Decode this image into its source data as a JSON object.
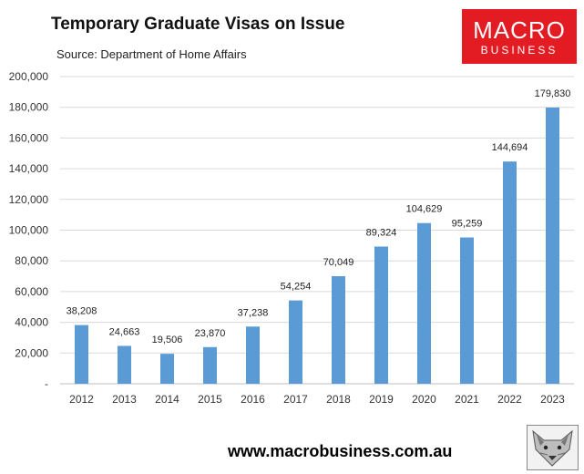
{
  "header": {
    "title": "Temporary Graduate Visas on Issue",
    "source": "Source: Department of Home Affairs"
  },
  "logo": {
    "line1": "MACRO",
    "line2": "BUSINESS",
    "bg_color": "#e31b23",
    "icon": "macrobusiness-logo"
  },
  "footer": {
    "url": "www.macrobusiness.com.au",
    "icon": "fox-mascot-icon"
  },
  "colors": {
    "bar": "#5b9bd5",
    "grid": "#d9d9d9"
  },
  "chart_data": {
    "type": "bar",
    "title": "Temporary Graduate Visas on Issue",
    "categories": [
      "2012",
      "2013",
      "2014",
      "2015",
      "2016",
      "2017",
      "2018",
      "2019",
      "2020",
      "2021",
      "2022",
      "2023"
    ],
    "values": [
      38208,
      24663,
      19506,
      23870,
      37238,
      54254,
      70049,
      89324,
      104629,
      95259,
      144694,
      179830
    ],
    "value_labels": [
      "38,208",
      "24,663",
      "19,506",
      "23,870",
      "37,238",
      "54,254",
      "70,049",
      "89,324",
      "104,629",
      "95,259",
      "144,694",
      "179,830"
    ],
    "ylim": [
      0,
      200000
    ],
    "yticks": [
      0,
      20000,
      40000,
      60000,
      80000,
      100000,
      120000,
      140000,
      160000,
      180000,
      200000
    ],
    "ytick_labels": [
      "-",
      "20,000",
      "40,000",
      "60,000",
      "80,000",
      "100,000",
      "120,000",
      "140,000",
      "160,000",
      "180,000",
      "200,000"
    ],
    "grid": true,
    "xlabel": "",
    "ylabel": ""
  }
}
